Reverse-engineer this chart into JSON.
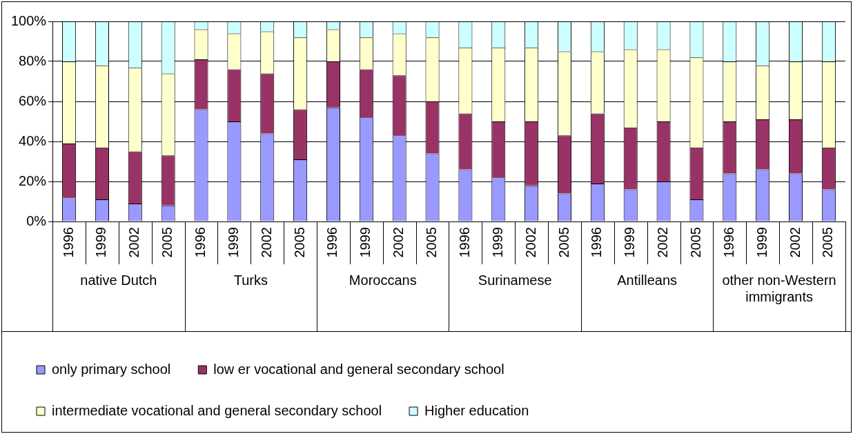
{
  "chart_data": {
    "type": "bar",
    "stacked": true,
    "grid": "y",
    "legend": "bottom",
    "categories": [
      "1996",
      "1999",
      "2002",
      "2005",
      "1996",
      "1999",
      "2002",
      "2005",
      "1996",
      "1999",
      "2002",
      "2005",
      "1996",
      "1999",
      "2002",
      "2005",
      "1996",
      "1999",
      "2002",
      "2005",
      "1996",
      "1999",
      "2002",
      "2005"
    ],
    "annotations": [
      "native Dutch",
      "Turks",
      "Moroccans",
      "Surinamese",
      "Antilleans",
      "other non-Western immigrants"
    ],
    "ylim": [
      0,
      100
    ],
    "yticks": [
      {
        "value": 0,
        "label": "0%"
      },
      {
        "value": 20,
        "label": "20%"
      },
      {
        "value": 40,
        "label": "40%"
      },
      {
        "value": 60,
        "label": "60%"
      },
      {
        "value": 80,
        "label": "80%"
      },
      {
        "value": 100,
        "label": "100%"
      }
    ],
    "series": [
      {
        "name": "only primary school",
        "color": "#9999ff",
        "values": [
          12,
          11,
          9,
          8,
          56,
          50,
          44,
          31,
          57,
          52,
          43,
          34,
          26,
          22,
          18,
          14,
          19,
          16,
          20,
          11,
          24,
          26,
          24,
          16
        ]
      },
      {
        "name": "low er vocational and general secondary school",
        "color": "#993366",
        "values": [
          27,
          26,
          26,
          25,
          25,
          26,
          30,
          25,
          23,
          24,
          30,
          26,
          28,
          28,
          32,
          29,
          35,
          31,
          30,
          26,
          26,
          25,
          27,
          21
        ]
      },
      {
        "name": "intermediate vocational and general secondary school",
        "color": "#ffffcc",
        "values": [
          41,
          41,
          42,
          41,
          15,
          18,
          21,
          36,
          16,
          16,
          21,
          32,
          33,
          37,
          37,
          42,
          31,
          39,
          36,
          45,
          30,
          27,
          29,
          43
        ]
      },
      {
        "name": "Higher education",
        "color": "#ccffff",
        "values": [
          20,
          22,
          23,
          26,
          4,
          6,
          5,
          8,
          4,
          8,
          6,
          8,
          13,
          13,
          13,
          15,
          15,
          14,
          14,
          18,
          20,
          22,
          20,
          20
        ]
      }
    ]
  }
}
